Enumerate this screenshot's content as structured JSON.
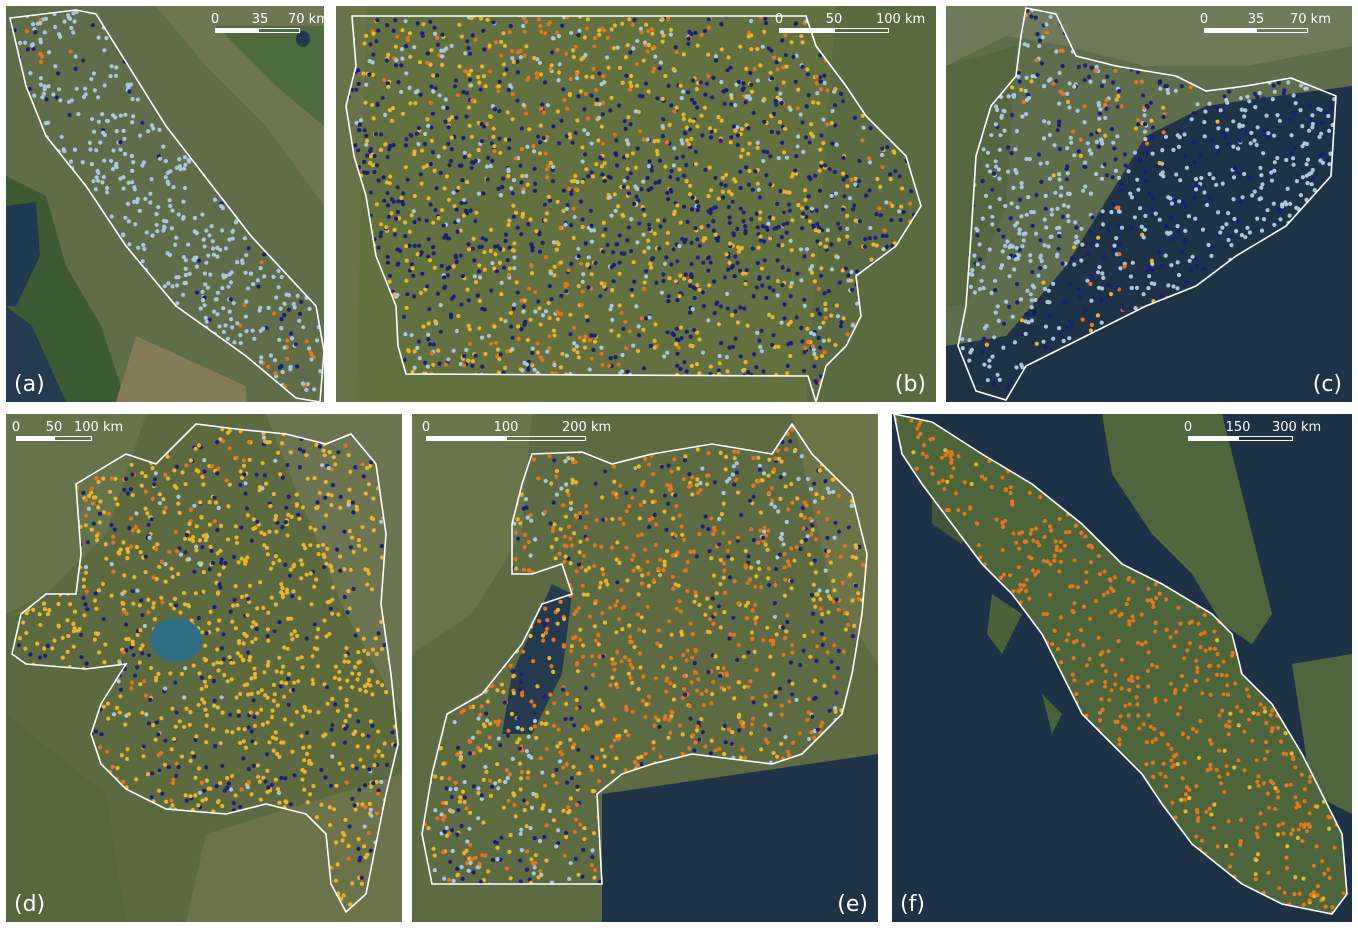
{
  "colors": {
    "light_blue": "#a9c8df",
    "navy": "#1c1f7a",
    "yellow": "#e8b52b",
    "orange": "#e5761f",
    "boundary": "#ffffff",
    "sea": "#1f3348",
    "land_green": "#4f6b3b",
    "land_tan": "#7c7350"
  },
  "panels": [
    {
      "id": "a",
      "label": "(a)",
      "label_side": "left",
      "scale": {
        "ticks": [
          "0",
          "35",
          "70 km"
        ]
      },
      "mix": {
        "light_blue": 0.78,
        "navy": 0.18,
        "orange": 0.04
      }
    },
    {
      "id": "b",
      "label": "(b)",
      "label_side": "right",
      "scale": {
        "ticks": [
          "0",
          "50",
          "100 km"
        ]
      },
      "mix": {
        "navy": 0.38,
        "yellow": 0.32,
        "light_blue": 0.18,
        "orange": 0.12
      }
    },
    {
      "id": "c",
      "label": "(c)",
      "label_side": "right",
      "scale": {
        "ticks": [
          "0",
          "35",
          "70 km"
        ]
      },
      "mix": {
        "light_blue": 0.58,
        "navy": 0.32,
        "yellow": 0.06,
        "orange": 0.04
      }
    },
    {
      "id": "d",
      "label": "(d)",
      "label_side": "left",
      "scale": {
        "ticks": [
          "0",
          "50",
          "100 km"
        ]
      },
      "mix": {
        "yellow": 0.58,
        "navy": 0.28,
        "light_blue": 0.08,
        "orange": 0.06
      }
    },
    {
      "id": "e",
      "label": "(e)",
      "label_side": "right",
      "scale": {
        "ticks": [
          "0",
          "100",
          "200 km"
        ]
      },
      "mix": {
        "orange": 0.42,
        "yellow": 0.3,
        "navy": 0.22,
        "light_blue": 0.06
      }
    },
    {
      "id": "f",
      "label": "(f)",
      "label_side": "left",
      "scale": {
        "ticks": [
          "0",
          "150",
          "300 km"
        ]
      },
      "mix": {
        "orange": 0.98,
        "yellow": 0.02
      }
    }
  ]
}
